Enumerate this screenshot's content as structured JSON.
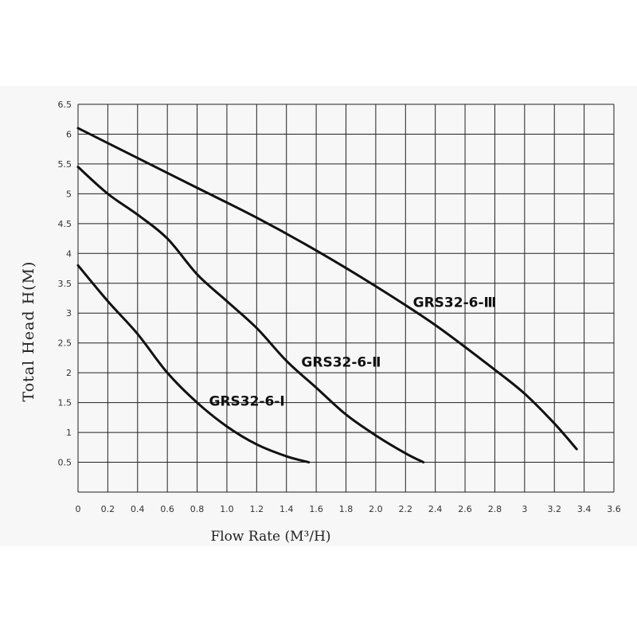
{
  "chart_data": {
    "type": "line",
    "title": "",
    "xlabel": "Flow Rate (M³/H)",
    "ylabel": "Total Head H(M)",
    "xlim": [
      0,
      3.6
    ],
    "ylim": [
      0,
      6.5
    ],
    "grid": true,
    "legend": "none",
    "x_ticks": [
      "0",
      "0.2",
      "0.4",
      "0.6",
      "0.8",
      "1.0",
      "1.2",
      "1.4",
      "1.6",
      "1.8",
      "2.0",
      "2.2",
      "2.4",
      "2.6",
      "2.8",
      "3",
      "3.2",
      "3.4",
      "3.6"
    ],
    "y_ticks": [
      "0.5",
      "1",
      "1.5",
      "2",
      "2.5",
      "3",
      "3.5",
      "4",
      "4.5",
      "5",
      "5.5",
      "6",
      "6.5"
    ],
    "series": [
      {
        "name": "GRS32-6-Ⅰ",
        "x": [
          0,
          0.2,
          0.4,
          0.6,
          0.8,
          1.0,
          1.2,
          1.4,
          1.55
        ],
        "y": [
          3.8,
          3.2,
          2.65,
          2.0,
          1.5,
          1.1,
          0.8,
          0.6,
          0.5
        ]
      },
      {
        "name": "GRS32-6-Ⅱ",
        "x": [
          0,
          0.2,
          0.4,
          0.6,
          0.8,
          1.0,
          1.2,
          1.4,
          1.6,
          1.8,
          2.0,
          2.2,
          2.32
        ],
        "y": [
          5.45,
          5.0,
          4.65,
          4.25,
          3.65,
          3.2,
          2.75,
          2.2,
          1.75,
          1.3,
          0.95,
          0.65,
          0.5
        ]
      },
      {
        "name": "GRS32-6-Ⅲ",
        "x": [
          0,
          0.4,
          0.8,
          1.2,
          1.6,
          2.0,
          2.4,
          2.8,
          3.0,
          3.2,
          3.35
        ],
        "y": [
          6.1,
          5.6,
          5.1,
          4.6,
          4.05,
          3.45,
          2.8,
          2.05,
          1.65,
          1.15,
          0.72
        ]
      }
    ]
  }
}
